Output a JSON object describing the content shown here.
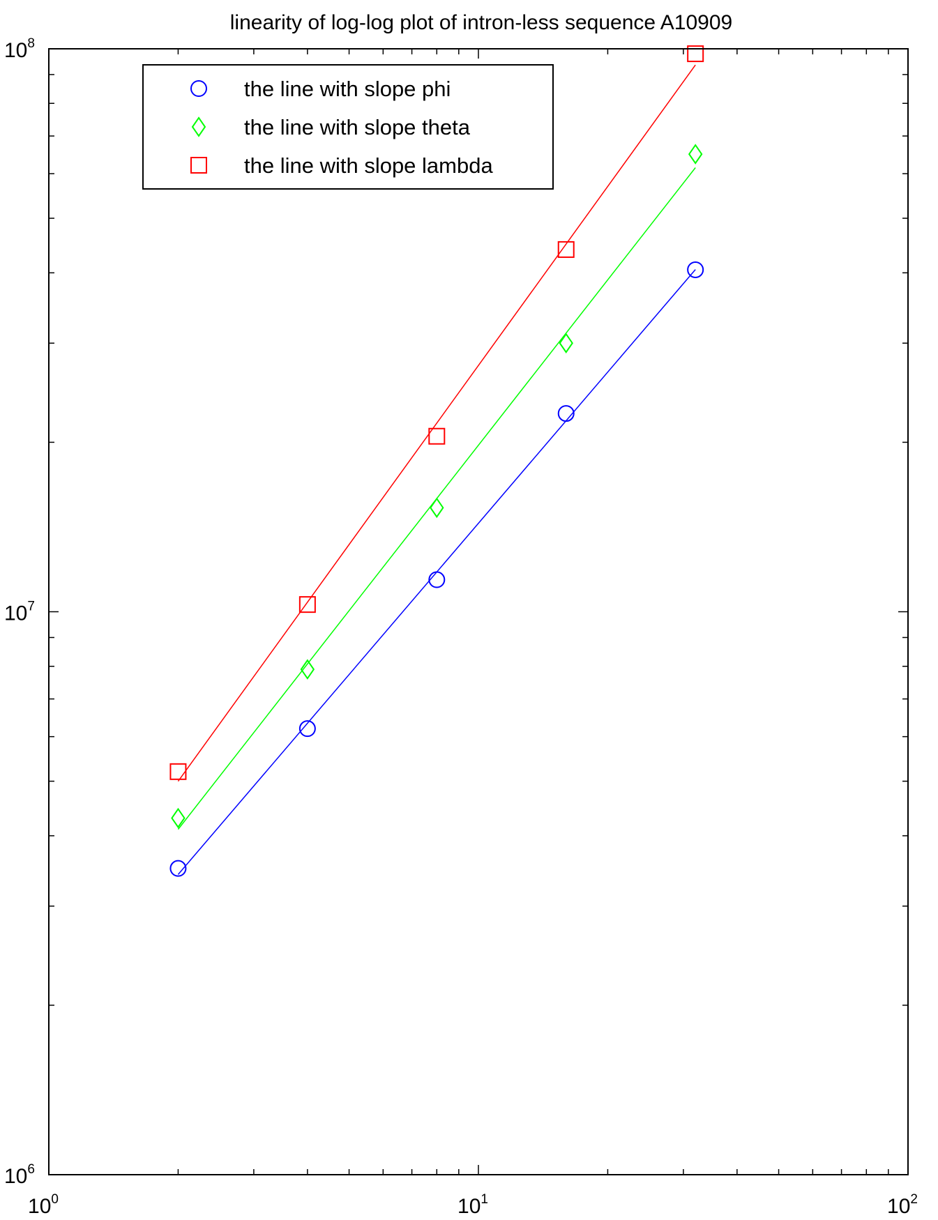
{
  "chart_data": {
    "type": "scatter",
    "title": "linearity of log-log plot of intron-less sequence A10909",
    "xlabel": "",
    "ylabel": "",
    "xscale": "log",
    "yscale": "log",
    "xlim": [
      1,
      100
    ],
    "ylim": [
      1000000,
      100000000
    ],
    "grid": false,
    "legend_position": "top-left",
    "x_ticks": [
      {
        "value": 1,
        "base": "10",
        "exp": "0"
      },
      {
        "value": 10,
        "base": "10",
        "exp": "1"
      },
      {
        "value": 100,
        "base": "10",
        "exp": "2"
      }
    ],
    "y_ticks": [
      {
        "value": 1000000,
        "base": "10",
        "exp": "6"
      },
      {
        "value": 10000000,
        "base": "10",
        "exp": "7"
      },
      {
        "value": 100000000,
        "base": "10",
        "exp": "8"
      }
    ],
    "series": [
      {
        "name": "the line with slope phi",
        "color": "#0000ff",
        "marker": "circle",
        "x": [
          2,
          4,
          8,
          16,
          32
        ],
        "y": [
          3500000,
          6200000,
          11400000,
          22500000,
          40500000
        ]
      },
      {
        "name": "the line with slope theta",
        "color": "#00ff00",
        "marker": "diamond",
        "x": [
          2,
          4,
          8,
          16,
          32
        ],
        "y": [
          4300000,
          7900000,
          15300000,
          30000000,
          65000000
        ]
      },
      {
        "name": "the line with slope lambda",
        "color": "#ff0000",
        "marker": "square",
        "x": [
          2,
          4,
          8,
          16,
          32
        ],
        "y": [
          5200000,
          10300000,
          20500000,
          44000000,
          98000000
        ]
      }
    ]
  }
}
